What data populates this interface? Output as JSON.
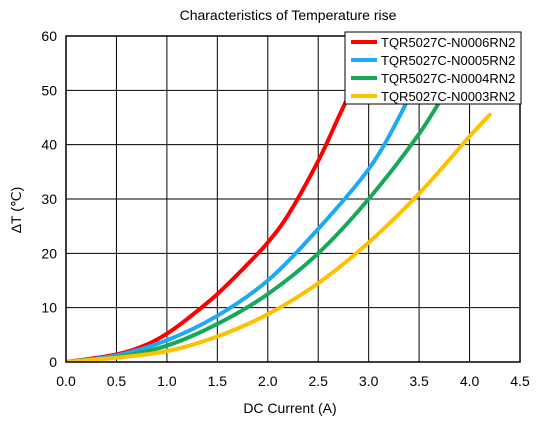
{
  "chart_data": {
    "type": "line",
    "title": "Characteristics of Temperature rise",
    "xlabel": "DC Current (A)",
    "ylabel": "ΔT (℃)",
    "xlim": [
      0,
      4.5
    ],
    "ylim": [
      0,
      60
    ],
    "x_ticks": [
      "0.0",
      "0.5",
      "1.0",
      "1.5",
      "2.0",
      "2.5",
      "3.0",
      "3.5",
      "4.0",
      "4.5"
    ],
    "y_ticks": [
      "0",
      "10",
      "20",
      "30",
      "40",
      "50",
      "60"
    ],
    "grid": true,
    "legend_position": "top-right",
    "series": [
      {
        "name": "TQR5027C-N0006RN2",
        "color": "#ff0000",
        "points": [
          [
            0,
            0
          ],
          [
            0.5,
            1.4
          ],
          [
            0.8,
            3.2
          ],
          [
            1.0,
            5.2
          ],
          [
            1.2,
            7.9
          ],
          [
            1.5,
            12.5
          ],
          [
            1.8,
            18.0
          ],
          [
            2.0,
            22.0
          ],
          [
            2.2,
            27.0
          ],
          [
            2.5,
            37.0
          ],
          [
            2.7,
            45.0
          ],
          [
            2.9,
            53.0
          ],
          [
            3.05,
            60.0
          ]
        ]
      },
      {
        "name": "TQR5027C-N0005RN2",
        "color": "#1eaaf0",
        "points": [
          [
            0,
            0
          ],
          [
            0.5,
            1.2
          ],
          [
            1.0,
            4.0
          ],
          [
            1.5,
            8.5
          ],
          [
            2.0,
            15.0
          ],
          [
            2.5,
            24.5
          ],
          [
            3.0,
            35.5
          ],
          [
            3.3,
            45.0
          ],
          [
            3.5,
            53.0
          ],
          [
            3.67,
            60.0
          ]
        ]
      },
      {
        "name": "TQR5027C-N0004RN2",
        "color": "#18a85a",
        "points": [
          [
            0,
            0
          ],
          [
            0.5,
            0.9
          ],
          [
            1.0,
            3.0
          ],
          [
            1.5,
            7.0
          ],
          [
            2.0,
            12.5
          ],
          [
            2.5,
            20.0
          ],
          [
            3.0,
            30.0
          ],
          [
            3.5,
            42.0
          ],
          [
            3.8,
            51.0
          ],
          [
            4.08,
            60.0
          ]
        ]
      },
      {
        "name": "TQR5027C-N0003RN2",
        "color": "#ffc000",
        "points": [
          [
            0,
            0
          ],
          [
            0.5,
            0.8
          ],
          [
            1.0,
            2.0
          ],
          [
            1.5,
            4.7
          ],
          [
            2.0,
            8.8
          ],
          [
            2.5,
            14.5
          ],
          [
            3.0,
            22.0
          ],
          [
            3.5,
            31.0
          ],
          [
            4.0,
            41.5
          ],
          [
            4.2,
            45.5
          ]
        ]
      }
    ]
  }
}
